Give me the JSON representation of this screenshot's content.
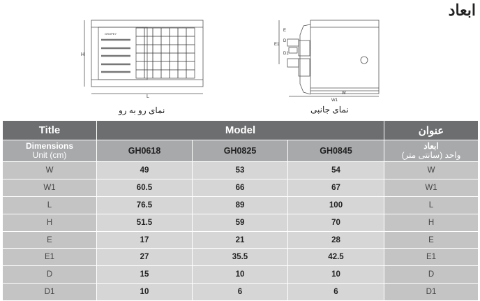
{
  "page_title": "ابعاد",
  "drawings": {
    "front_caption": "نمای رو به رو",
    "side_caption": "نمای جانبی",
    "front_brand": "GROPEY",
    "labels": {
      "H": "H",
      "L": "L",
      "W": "W",
      "W1": "W1",
      "E": "E",
      "E1": "E1",
      "D": "D",
      "D1": "D1"
    }
  },
  "table": {
    "title_en": "Title",
    "model": "Model",
    "title_fa": "عنوان",
    "dimensions_en": "Dimensions",
    "unit_en": "Unit (cm)",
    "dimensions_fa": "ابعاد",
    "unit_fa": "واحد (سانتی متر)",
    "models": [
      "GH0618",
      "GH0825",
      "GH0845"
    ],
    "rows": [
      {
        "label": "W",
        "values": [
          "49",
          "53",
          "54"
        ],
        "label_fa": "W"
      },
      {
        "label": "W1",
        "values": [
          "60.5",
          "66",
          "67"
        ],
        "label_fa": "W1"
      },
      {
        "label": "L",
        "values": [
          "76.5",
          "89",
          "100"
        ],
        "label_fa": "L"
      },
      {
        "label": "H",
        "values": [
          "51.5",
          "59",
          "70"
        ],
        "label_fa": "H"
      },
      {
        "label": "E",
        "values": [
          "17",
          "21",
          "28"
        ],
        "label_fa": "E"
      },
      {
        "label": "E1",
        "values": [
          "27",
          "35.5",
          "42.5"
        ],
        "label_fa": "E1"
      },
      {
        "label": "D",
        "values": [
          "15",
          "10",
          "10"
        ],
        "label_fa": "D"
      },
      {
        "label": "D1",
        "values": [
          "10",
          "6",
          "6"
        ],
        "label_fa": "D1"
      }
    ]
  }
}
